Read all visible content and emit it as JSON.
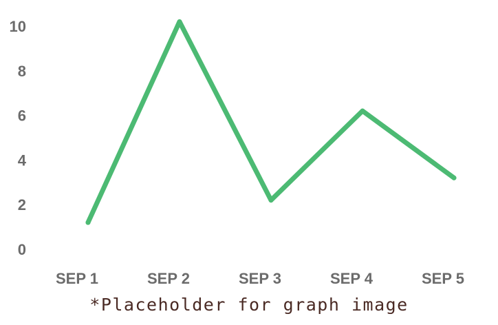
{
  "caption": "*Placeholder for graph image",
  "colors": {
    "line": "#4cba73",
    "tick_text": "#6b6b6b",
    "caption_text": "#4a2a24",
    "background": "#ffffff"
  },
  "chart_data": {
    "type": "line",
    "title": "",
    "xlabel": "",
    "ylabel": "",
    "categories": [
      "SEP 1",
      "SEP 2",
      "SEP 3",
      "SEP 4",
      "SEP 5"
    ],
    "series": [
      {
        "values": [
          1.2,
          10.2,
          2.2,
          6.2,
          3.2
        ]
      }
    ],
    "ylim": [
      0,
      10
    ],
    "yticks": [
      0,
      2,
      4,
      6,
      8,
      10
    ],
    "grid": false,
    "legend": "none"
  }
}
